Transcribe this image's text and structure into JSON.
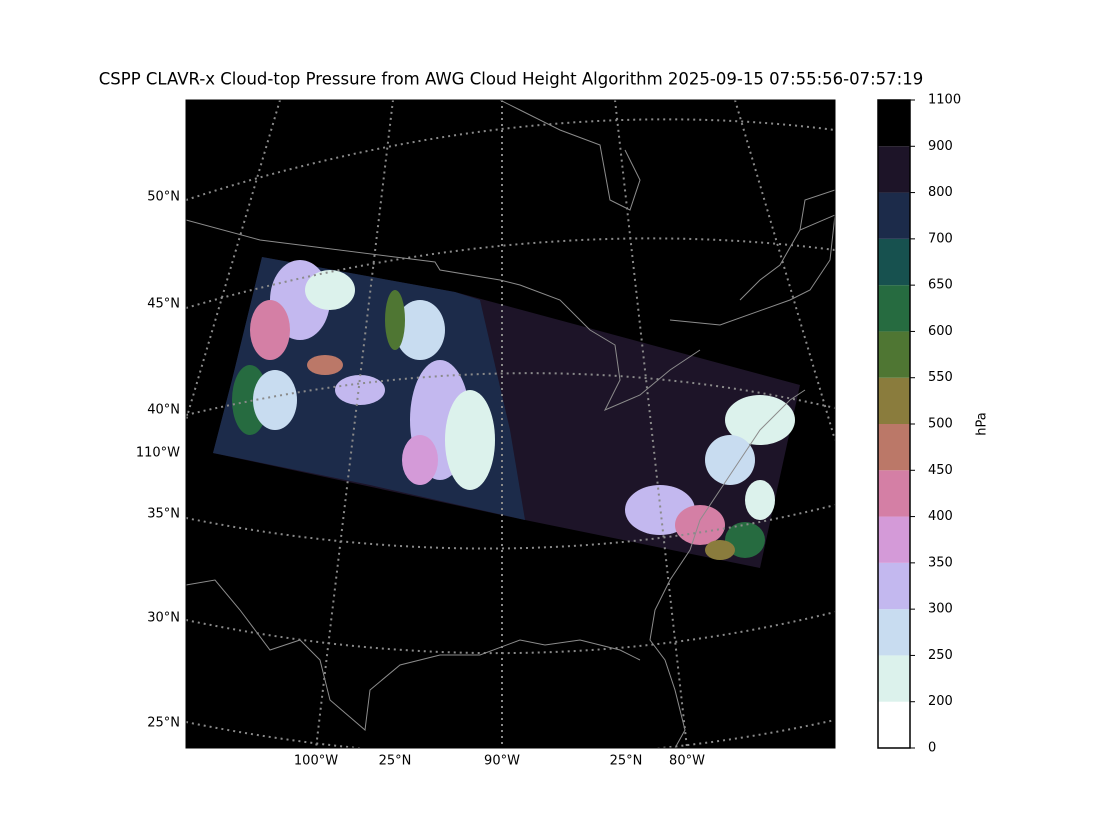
{
  "title": "CSPP CLAVR-x Cloud-top Pressure from AWG Cloud Height Algorithm 2025-09-15 07:55:56-07:57:19",
  "map": {
    "left_labels": [
      "50°N",
      "45°N",
      "40°N",
      "110°W",
      "35°N",
      "30°N",
      "25°N"
    ],
    "bottom_labels": [
      "100°W",
      "25°N",
      "90°W",
      "25°N",
      "80°W"
    ]
  },
  "colorbar": {
    "label": "hPa",
    "ticks": [
      0,
      200,
      250,
      300,
      350,
      400,
      450,
      500,
      550,
      600,
      650,
      700,
      800,
      900,
      1100
    ],
    "colors": [
      "#ffffff",
      "#dcf2ec",
      "#c8dcf0",
      "#c3b8ef",
      "#d49ad8",
      "#d47fa5",
      "#bb7868",
      "#8a7c3d",
      "#4f7633",
      "#266b40",
      "#17514f",
      "#1c2b4a",
      "#1d1428",
      "#000000"
    ]
  }
}
